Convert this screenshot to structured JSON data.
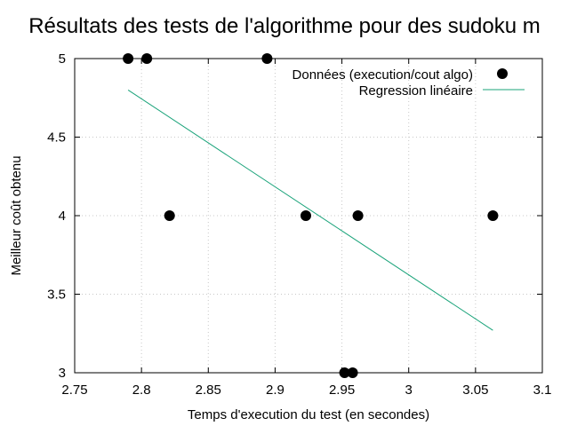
{
  "chart_data": {
    "type": "scatter",
    "title": "Résultats des tests de l'algorithme pour des sudoku m",
    "xlabel": "Temps d'execution du test (en secondes)",
    "ylabel": "Meilleur coût obtenu",
    "xlim": [
      2.75,
      3.1
    ],
    "ylim": [
      3,
      5
    ],
    "xticks": [
      2.75,
      2.8,
      2.85,
      2.9,
      2.95,
      3,
      3.05,
      3.1
    ],
    "xtick_labels": [
      "2.75",
      "2.8",
      "2.85",
      "2.9",
      "2.95",
      "3",
      "3.05",
      "3.1"
    ],
    "yticks": [
      3,
      3.5,
      4,
      4.5,
      5
    ],
    "ytick_labels": [
      "3",
      "3.5",
      "4",
      "4.5",
      "5"
    ],
    "grid": true,
    "legend_position": "top-right",
    "series": [
      {
        "name": "Données (execution/cout algo)",
        "type": "scatter",
        "color": "#000000",
        "points": [
          {
            "x": 2.79,
            "y": 5
          },
          {
            "x": 2.804,
            "y": 5
          },
          {
            "x": 2.894,
            "y": 5
          },
          {
            "x": 2.821,
            "y": 4
          },
          {
            "x": 2.923,
            "y": 4
          },
          {
            "x": 2.962,
            "y": 4
          },
          {
            "x": 3.063,
            "y": 4
          },
          {
            "x": 2.952,
            "y": 3
          },
          {
            "x": 2.958,
            "y": 3
          }
        ]
      },
      {
        "name": "Regression linéaire",
        "type": "line",
        "color": "#1aa37a",
        "points": [
          {
            "x": 2.79,
            "y": 4.8
          },
          {
            "x": 3.063,
            "y": 3.27
          }
        ]
      }
    ]
  }
}
